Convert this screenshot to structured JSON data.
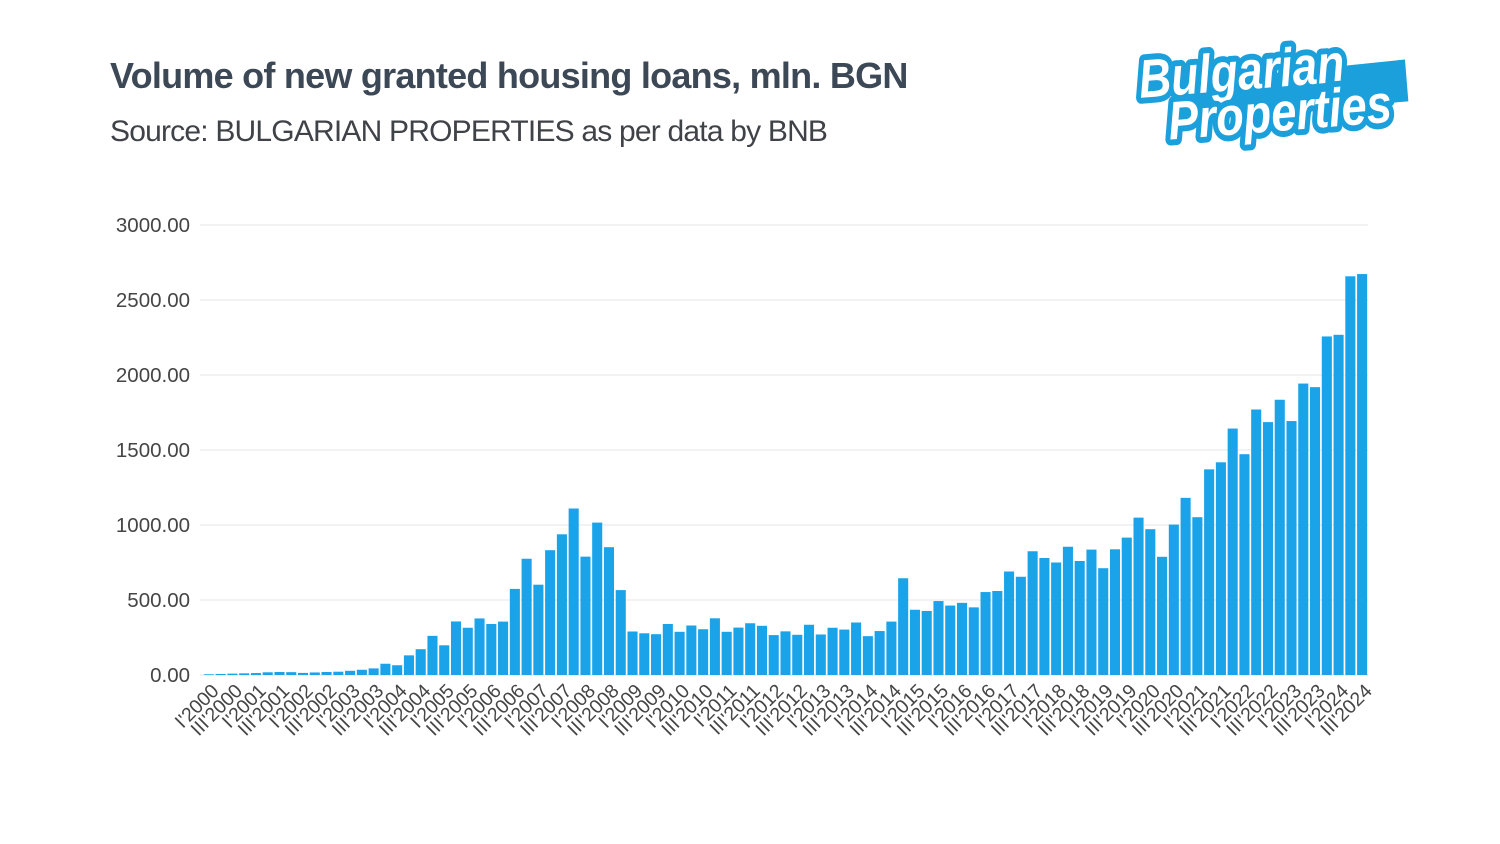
{
  "page": {
    "background": "#ffffff"
  },
  "header": {
    "title": "Volume of new granted housing loans, mln. BGN",
    "source_line": "Source: BULGARIAN PROPERTIES as per data by BNB"
  },
  "logo": {
    "line1": "Bulgarian",
    "line2": "Properties",
    "fill": "#ffffff",
    "outline": "#1ba0dc"
  },
  "chart_data": {
    "type": "bar",
    "title": "Volume of new granted housing loans, mln. BGN",
    "xlabel": "",
    "ylabel": "",
    "unit": "mln. BGN",
    "bar_color": "#1aa3e8",
    "gridline_color": "#e6e6e6",
    "axis_text_color": "#454545",
    "legend": "none",
    "grid": "horizontal",
    "ylim": [
      0,
      3000
    ],
    "y_ticks": [
      "0.00",
      "500.00",
      "1000.00",
      "1500.00",
      "2000.00",
      "2500.00",
      "3000.00"
    ],
    "y_tick_values": [
      0,
      500,
      1000,
      1500,
      2000,
      2500,
      3000
    ],
    "x_tick_step": 2,
    "x_tick_rotation_deg": -45,
    "categories": [
      "I'2000",
      "II'2000",
      "III'2000",
      "IV'2000",
      "I'2001",
      "II'2001",
      "III'2001",
      "IV'2001",
      "I'2002",
      "II'2002",
      "III'2002",
      "IV'2002",
      "I'2003",
      "II'2003",
      "III'2003",
      "IV'2003",
      "I'2004",
      "II'2004",
      "III'2004",
      "IV'2004",
      "I'2005",
      "II'2005",
      "III'2005",
      "IV'2005",
      "I'2006",
      "II'2006",
      "III'2006",
      "IV'2006",
      "I'2007",
      "II'2007",
      "III'2007",
      "IV'2007",
      "I'2008",
      "II'2008",
      "III'2008",
      "IV'2008",
      "I'2009",
      "II'2009",
      "III'2009",
      "IV'2009",
      "I'2010",
      "II'2010",
      "III'2010",
      "IV'2010",
      "I'2011",
      "II'2011",
      "III'2011",
      "IV'2011",
      "I'2012",
      "II'2012",
      "III'2012",
      "IV'2012",
      "I'2013",
      "II'2013",
      "III'2013",
      "IV'2013",
      "I'2014",
      "II'2014",
      "III'2014",
      "IV'2014",
      "I'2015",
      "II'2015",
      "III'2015",
      "IV'2015",
      "I'2016",
      "II'2016",
      "III'2016",
      "IV'2016",
      "I'2017",
      "II'2017",
      "III'2017",
      "IV'2017",
      "I'2018",
      "II'2018",
      "III'2018",
      "IV'2018",
      "I'2019",
      "II'2019",
      "III'2019",
      "IV'2019",
      "I'2020",
      "II'2020",
      "III'2020",
      "IV'2020",
      "I'2021",
      "II'2021",
      "III'2021",
      "IV'2021",
      "I'2022",
      "II'2022",
      "III'2022",
      "IV'2022",
      "I'2023",
      "II'2023",
      "III'2023",
      "IV'2023",
      "I'2024",
      "II'2024",
      "III'2024"
    ],
    "values": [
      5,
      7,
      9,
      11,
      13,
      18,
      20,
      19,
      14,
      17,
      20,
      22,
      28,
      35,
      44,
      75,
      65,
      131,
      172,
      261,
      198,
      357,
      315,
      377,
      340,
      356,
      574,
      775,
      602,
      832,
      938,
      1110,
      789,
      1016,
      852,
      566,
      290,
      278,
      272,
      340,
      288,
      330,
      305,
      378,
      288,
      316,
      345,
      328,
      266,
      291,
      268,
      335,
      270,
      315,
      303,
      350,
      259,
      293,
      356,
      645,
      435,
      427,
      493,
      463,
      481,
      451,
      553,
      560,
      690,
      655,
      825,
      780,
      750,
      855,
      760,
      836,
      712,
      838,
      916,
      1049,
      972,
      788,
      1003,
      1181,
      1052,
      1371,
      1418,
      1643,
      1472,
      1770,
      1686,
      1835,
      1693,
      1943,
      1919,
      2257,
      2268,
      2658,
      2673
    ]
  }
}
